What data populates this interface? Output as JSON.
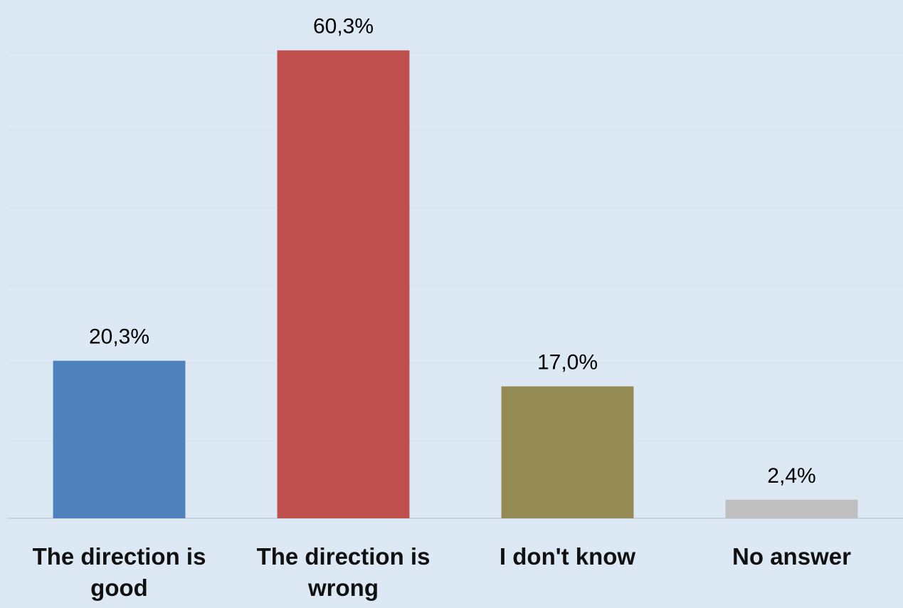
{
  "chart_data": {
    "type": "bar",
    "categories": [
      "The direction is good",
      "The direction is wrong",
      "I don't know",
      "No answer"
    ],
    "values": [
      20.3,
      60.3,
      17.0,
      2.4
    ],
    "value_labels": [
      "20,3%",
      "60,3%",
      "17,0%",
      "2,4%"
    ],
    "colors": [
      "#4f81bd",
      "#c0504d",
      "#948a54",
      "#bfbfbf"
    ],
    "ylim": [
      0,
      66
    ],
    "yticks": [
      0,
      10,
      20,
      30,
      40,
      50,
      60
    ],
    "grid": true
  }
}
